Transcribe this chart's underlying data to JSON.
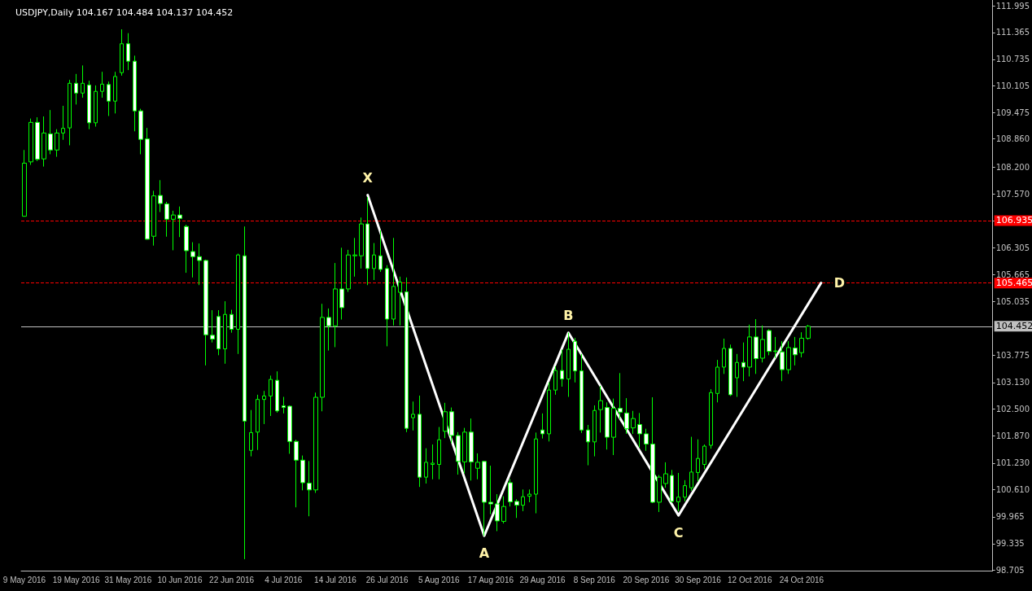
{
  "chart_data": {
    "type": "candlestick",
    "title": "USDJPY,Daily 104.167 104.484 104.137 104.452",
    "categories": [
      "9 May 2016",
      null,
      null,
      null,
      null,
      null,
      null,
      null,
      "19 May 2016",
      null,
      null,
      null,
      null,
      null,
      null,
      null,
      "31 May 2016",
      null,
      null,
      null,
      null,
      null,
      null,
      null,
      "10 Jun 2016",
      null,
      null,
      null,
      null,
      null,
      null,
      null,
      "22 Jun 2016",
      null,
      null,
      null,
      null,
      null,
      null,
      null,
      "4 Jul 2016",
      null,
      null,
      null,
      null,
      null,
      null,
      null,
      "14 Jul 2016",
      null,
      null,
      null,
      null,
      null,
      null,
      null,
      "26 Jul 2016",
      null,
      null,
      null,
      null,
      null,
      null,
      null,
      "5 Aug 2016",
      null,
      null,
      null,
      null,
      null,
      null,
      null,
      "17 Aug 2016",
      null,
      null,
      null,
      null,
      null,
      null,
      null,
      "29 Aug 2016",
      null,
      null,
      null,
      null,
      null,
      null,
      null,
      "8 Sep 2016",
      null,
      null,
      null,
      null,
      null,
      null,
      null,
      "20 Sep 2016",
      null,
      null,
      null,
      null,
      null,
      null,
      null,
      "30 Sep 2016",
      null,
      null,
      null,
      null,
      null,
      null,
      null,
      "12 Oct 2016",
      null,
      null,
      null,
      null,
      null,
      null,
      null,
      "24 Oct 2016",
      null,
      null,
      null,
      null,
      null,
      null,
      null,
      null,
      null,
      null,
      null,
      null,
      null,
      null,
      null,
      null,
      null,
      null,
      null,
      null,
      null,
      null,
      null,
      null,
      null,
      null,
      null,
      null,
      null
    ],
    "series": [
      {
        "color": "#00ff00",
        "colors": [
          "#000000",
          "#000000",
          "#ffffff",
          "#000000",
          "#ffffff",
          "#000000",
          "#000000",
          "#000000",
          "#ffffff",
          "#000000",
          "#ffffff",
          "#000000",
          "#000000",
          "#ffffff",
          "#000000",
          "#000000",
          "#ffffff",
          "#ffffff",
          "#ffffff",
          "#ffffff",
          "#000000",
          "#ffffff",
          "#ffffff",
          "#000000",
          "#ffffff",
          "#ffffff",
          "#ffffff",
          "#ffffff",
          "#ffffff",
          "#ffffff",
          "#ffffff",
          "#000000",
          "#ffffff",
          "#000000",
          "#ffffff",
          "#000000",
          "#000000",
          "#000000",
          "#000000",
          "#ffffff",
          "#ffffff",
          "#ffffff",
          "#ffffff",
          "#ffffff",
          "#ffffff",
          "#000000",
          "#000000",
          "#ffffff",
          "#000000",
          "#ffffff",
          "#000000",
          "#000000",
          "#000000",
          "#ffffff",
          "#000000",
          "#ffffff",
          "#ffffff",
          "#000000",
          "#000000",
          "#ffffff",
          "#000000",
          "#ffffff",
          "#000000",
          "#000000",
          "#000000",
          "#000000",
          "#ffffff",
          "#ffffff",
          "#000000",
          "#ffffff",
          "#000000",
          "#ffffff",
          "#ffffff",
          "#ffffff",
          "#000000",
          "#ffffff",
          "#ffffff",
          "#000000",
          "#000000",
          "#000000",
          "#ffffff",
          "#000000",
          "#000000",
          "#ffffff",
          "#000000",
          "#ffffff",
          "#ffffff",
          "#ffffff",
          "#000000",
          "#000000",
          "#ffffff",
          "#000000",
          "#ffffff",
          "#ffffff",
          "#000000",
          "#ffffff",
          "#ffffff",
          "#ffffff",
          "#000000",
          "#000000",
          "#ffffff",
          "#000000",
          "#000000",
          "#000000",
          "#000000",
          "#000000",
          "#000000",
          "#000000",
          "#000000",
          "#ffffff",
          "#000000",
          "#ffffff",
          "#000000",
          "#ffffff",
          "#000000",
          "#ffffff",
          "#000000",
          "#ffffff",
          "#000000",
          "#ffffff",
          "#000000",
          "#000000",
          null,
          null,
          null,
          null,
          null,
          null,
          null,
          null,
          null,
          null,
          null,
          null,
          null,
          null,
          null,
          null,
          null,
          null,
          null,
          null,
          null,
          null,
          null,
          null,
          null,
          null,
          null,
          null
        ],
        "ohlc": [
          [
            107.04,
            108.6,
            107.03,
            108.29
          ],
          [
            108.32,
            109.34,
            108.25,
            109.25
          ],
          [
            109.25,
            109.37,
            108.34,
            108.38
          ],
          [
            108.39,
            109.39,
            108.21,
            109.0
          ],
          [
            108.98,
            109.54,
            108.5,
            108.6
          ],
          [
            108.6,
            109.09,
            108.44,
            109.0
          ],
          [
            109.0,
            109.64,
            108.84,
            109.11
          ],
          [
            109.12,
            110.25,
            108.71,
            110.17
          ],
          [
            110.17,
            110.39,
            109.67,
            109.94
          ],
          [
            109.94,
            110.59,
            109.83,
            110.17
          ],
          [
            110.13,
            110.23,
            109.09,
            109.24
          ],
          [
            109.24,
            110.12,
            109.15,
            109.98
          ],
          [
            109.98,
            110.44,
            109.83,
            110.15
          ],
          [
            110.14,
            110.21,
            109.4,
            109.75
          ],
          [
            109.75,
            110.44,
            109.46,
            110.33
          ],
          [
            110.42,
            111.44,
            110.35,
            111.1
          ],
          [
            111.1,
            111.35,
            110.48,
            110.69
          ],
          [
            110.69,
            110.82,
            109.04,
            109.52
          ],
          [
            109.52,
            109.57,
            108.5,
            108.85
          ],
          [
            108.86,
            109.12,
            106.49,
            106.5
          ],
          [
            106.57,
            107.64,
            106.35,
            107.52
          ],
          [
            107.53,
            107.89,
            107.14,
            107.34
          ],
          [
            107.33,
            107.38,
            106.56,
            106.97
          ],
          [
            106.97,
            107.17,
            106.24,
            107.07
          ],
          [
            107.07,
            107.27,
            106.55,
            106.99
          ],
          [
            106.8,
            106.84,
            105.71,
            106.23
          ],
          [
            106.21,
            106.43,
            105.6,
            106.09
          ],
          [
            106.09,
            106.4,
            105.42,
            106.0
          ],
          [
            106.0,
            106.02,
            103.53,
            104.25
          ],
          [
            104.24,
            104.83,
            104.07,
            104.15
          ],
          [
            104.68,
            104.83,
            103.77,
            103.92
          ],
          [
            103.92,
            105.04,
            103.57,
            104.73
          ],
          [
            104.73,
            104.84,
            104.3,
            104.38
          ],
          [
            104.38,
            106.16,
            103.8,
            106.13
          ],
          [
            106.11,
            106.8,
            98.97,
            102.22
          ],
          [
            101.53,
            102.48,
            101.39,
            101.95
          ],
          [
            101.96,
            102.84,
            101.54,
            102.73
          ],
          [
            102.73,
            102.93,
            102.15,
            102.81
          ],
          [
            102.81,
            103.29,
            102.34,
            103.2
          ],
          [
            103.18,
            103.39,
            102.42,
            102.46
          ],
          [
            102.58,
            102.79,
            102.4,
            102.54
          ],
          [
            102.57,
            102.59,
            101.45,
            101.74
          ],
          [
            101.74,
            101.78,
            100.19,
            101.3
          ],
          [
            101.3,
            101.41,
            100.59,
            100.77
          ],
          [
            100.76,
            101.28,
            99.98,
            100.6
          ],
          [
            100.6,
            102.89,
            100.53,
            102.78
          ],
          [
            102.78,
            104.98,
            102.45,
            104.66
          ],
          [
            104.66,
            104.87,
            103.88,
            104.46
          ],
          [
            104.46,
            105.94,
            103.96,
            105.33
          ],
          [
            105.33,
            106.3,
            104.61,
            104.89
          ],
          [
            105.33,
            106.25,
            105.26,
            106.13
          ],
          [
            106.11,
            106.53,
            105.62,
            106.13
          ],
          [
            106.11,
            107.01,
            105.81,
            106.86
          ],
          [
            106.86,
            107.49,
            105.42,
            105.81
          ],
          [
            105.81,
            106.41,
            105.54,
            106.13
          ],
          [
            106.11,
            106.71,
            105.73,
            105.79
          ],
          [
            105.81,
            105.89,
            103.98,
            104.62
          ],
          [
            104.62,
            106.53,
            104.47,
            105.39
          ],
          [
            105.25,
            105.62,
            104.47,
            105.49
          ],
          [
            105.26,
            105.6,
            101.96,
            102.05
          ],
          [
            102.3,
            102.68,
            102.0,
            102.38
          ],
          [
            102.38,
            102.82,
            100.67,
            100.9
          ],
          [
            100.9,
            101.58,
            100.75,
            101.25
          ],
          [
            101.2,
            101.67,
            100.85,
            101.23
          ],
          [
            101.2,
            102.08,
            100.85,
            101.78
          ],
          [
            101.98,
            102.65,
            101.82,
            102.44
          ],
          [
            102.44,
            102.54,
            101.7,
            101.88
          ],
          [
            101.88,
            101.96,
            100.96,
            101.27
          ],
          [
            101.26,
            102.06,
            100.99,
            101.96
          ],
          [
            101.96,
            102.28,
            100.82,
            101.26
          ],
          [
            101.11,
            101.46,
            100.85,
            101.25
          ],
          [
            101.27,
            101.28,
            99.52,
            100.31
          ],
          [
            100.31,
            101.17,
            100.03,
            100.27
          ],
          [
            100.27,
            100.5,
            99.63,
            99.87
          ],
          [
            99.86,
            100.45,
            99.81,
            100.21
          ],
          [
            100.77,
            100.86,
            100.21,
            100.32
          ],
          [
            100.33,
            100.38,
            99.94,
            100.24
          ],
          [
            100.24,
            100.61,
            100.1,
            100.44
          ],
          [
            100.45,
            100.61,
            100.31,
            100.5
          ],
          [
            100.5,
            101.95,
            100.05,
            101.8
          ],
          [
            102.01,
            102.4,
            101.81,
            101.92
          ],
          [
            101.92,
            103.13,
            101.74,
            102.95
          ],
          [
            102.95,
            103.51,
            102.84,
            103.41
          ],
          [
            103.41,
            103.9,
            103.03,
            103.21
          ],
          [
            103.21,
            104.3,
            102.79,
            103.91
          ],
          [
            104.1,
            104.18,
            103.13,
            103.4
          ],
          [
            103.4,
            103.8,
            101.94,
            102.01
          ],
          [
            102.01,
            102.13,
            101.18,
            101.73
          ],
          [
            101.73,
            102.59,
            101.39,
            102.47
          ],
          [
            102.49,
            103.05,
            101.95,
            102.7
          ],
          [
            102.54,
            102.66,
            101.55,
            101.84
          ],
          [
            101.84,
            102.75,
            101.42,
            102.52
          ],
          [
            102.52,
            103.35,
            102.27,
            102.43
          ],
          [
            102.41,
            102.76,
            101.92,
            102.04
          ],
          [
            102.06,
            102.46,
            101.92,
            102.28
          ],
          [
            102.14,
            102.41,
            101.6,
            101.92
          ],
          [
            101.92,
            102.04,
            101.52,
            101.68
          ],
          [
            101.68,
            102.78,
            100.29,
            100.31
          ],
          [
            100.31,
            100.95,
            100.08,
            100.9
          ],
          [
            100.75,
            101.25,
            100.65,
            100.98
          ],
          [
            100.94,
            101.07,
            100.3,
            100.33
          ],
          [
            100.32,
            101.0,
            100.1,
            100.43
          ],
          [
            100.43,
            100.83,
            100.33,
            100.7
          ],
          [
            100.65,
            101.85,
            100.58,
            101.02
          ],
          [
            101.01,
            101.79,
            100.8,
            101.34
          ],
          [
            101.2,
            101.67,
            101.09,
            101.63
          ],
          [
            101.65,
            102.97,
            101.57,
            102.89
          ],
          [
            102.87,
            103.66,
            102.66,
            103.49
          ],
          [
            103.49,
            104.16,
            103.33,
            103.93
          ],
          [
            103.93,
            104.02,
            102.81,
            102.84
          ],
          [
            103.24,
            103.8,
            102.79,
            103.6
          ],
          [
            103.6,
            104.07,
            103.16,
            103.49
          ],
          [
            103.49,
            104.49,
            103.27,
            104.2
          ],
          [
            104.2,
            104.62,
            103.33,
            103.69
          ],
          [
            103.7,
            104.47,
            103.6,
            104.14
          ],
          [
            104.35,
            104.38,
            103.77,
            103.86
          ],
          [
            103.86,
            104.2,
            103.7,
            103.87
          ],
          [
            103.85,
            104.1,
            103.16,
            103.43
          ],
          [
            103.43,
            104.1,
            103.33,
            103.95
          ],
          [
            103.94,
            104.2,
            103.53,
            103.78
          ],
          [
            103.83,
            104.31,
            103.72,
            104.17
          ],
          [
            104.167,
            104.484,
            104.137,
            104.452
          ],
          null,
          null,
          null,
          null,
          null,
          null,
          null,
          null,
          null,
          null,
          null,
          null,
          null,
          null,
          null,
          null,
          null,
          null,
          null,
          null,
          null,
          null,
          null,
          null,
          null,
          null,
          null,
          null
        ]
      },
      {
        "type": "line",
        "color": "#ffffff",
        "marker": "none",
        "line_style": "solid",
        "values": [
          null,
          null,
          null,
          null,
          null,
          null,
          null,
          null,
          null,
          null,
          null,
          null,
          null,
          null,
          null,
          null,
          null,
          null,
          null,
          null,
          null,
          null,
          null,
          null,
          null,
          null,
          null,
          null,
          null,
          null,
          null,
          null,
          null,
          null,
          null,
          null,
          null,
          null,
          null,
          null,
          null,
          null,
          null,
          null,
          null,
          null,
          null,
          null,
          null,
          null,
          null,
          null,
          null,
          107.54,
          null,
          null,
          null,
          null,
          null,
          null,
          null,
          null,
          null,
          null,
          null,
          null,
          null,
          null,
          null,
          null,
          null,
          99.52,
          null,
          null,
          null,
          null,
          null,
          null,
          null,
          null,
          null,
          null,
          null,
          null,
          104.3,
          null,
          null,
          null,
          null,
          null,
          null,
          null,
          null,
          null,
          null,
          null,
          null,
          null,
          null,
          null,
          null,
          100.0,
          null,
          null,
          null,
          null,
          null,
          null,
          null,
          null,
          null,
          null,
          null,
          null,
          null,
          null,
          null,
          null,
          null,
          null,
          null,
          null,
          null,
          105.47,
          null,
          null,
          null,
          null,
          null,
          null,
          null,
          null,
          null,
          null,
          null,
          null,
          null,
          null,
          null,
          null,
          null,
          null,
          null,
          null,
          null,
          null,
          null,
          null,
          null,
          null
        ],
        "value_labels": [
          null,
          null,
          null,
          null,
          null,
          null,
          null,
          null,
          null,
          null,
          null,
          null,
          null,
          null,
          null,
          null,
          null,
          null,
          null,
          null,
          null,
          null,
          null,
          null,
          null,
          null,
          null,
          null,
          null,
          null,
          null,
          null,
          null,
          null,
          null,
          null,
          null,
          null,
          null,
          null,
          null,
          null,
          null,
          null,
          null,
          null,
          null,
          null,
          null,
          null,
          null,
          null,
          null,
          "X",
          null,
          null,
          null,
          null,
          null,
          null,
          null,
          null,
          null,
          null,
          null,
          null,
          null,
          null,
          null,
          null,
          null,
          "A",
          null,
          null,
          null,
          null,
          null,
          null,
          null,
          null,
          null,
          null,
          null,
          null,
          "B",
          null,
          null,
          null,
          null,
          null,
          null,
          null,
          null,
          null,
          null,
          null,
          null,
          null,
          null,
          null,
          null,
          "C",
          null,
          null,
          null,
          null,
          null,
          null,
          null,
          null,
          null,
          null,
          null,
          null,
          null,
          null,
          null,
          null,
          null,
          null,
          null,
          null,
          null,
          "D",
          null,
          null,
          null,
          null,
          null,
          null,
          null,
          null,
          null,
          null,
          null,
          null,
          null,
          null,
          null,
          null,
          null,
          null,
          null,
          null,
          null,
          null,
          null,
          null,
          null,
          null
        ]
      }
    ],
    "ylim": [
      98.7,
      112.13
    ],
    "yticks": [
      111.995,
      111.365,
      110.735,
      110.105,
      109.475,
      {
        "value": 108.86,
        "label": "108.860"
      },
      {
        "value": 108.2,
        "label": "108.200"
      },
      {
        "value": 107.57,
        "label": "107.570"
      },
      106.935,
      106.305,
      105.665,
      105.035,
      103.775,
      {
        "value": 103.13,
        "label": "103.130"
      },
      {
        "value": 102.5,
        "label": "102.500"
      },
      {
        "value": 101.87,
        "label": "101.870"
      },
      {
        "value": 101.23,
        "label": "101.230"
      },
      {
        "value": 100.61,
        "label": "100.610"
      },
      99.965,
      99.335,
      98.705
    ],
    "ref_lines": [
      {
        "axis": "y",
        "value": 106.935,
        "label": "106.935",
        "color": "#ff0000",
        "line_style": "dashed"
      },
      {
        "axis": "y",
        "value": 105.465,
        "label": "105.465",
        "color": "#ff0000",
        "line_style": "dashed"
      },
      {
        "axis": "y",
        "value": 104.452,
        "label": "104.452",
        "color": "#c0c0c0",
        "line_style": "solid"
      }
    ]
  }
}
